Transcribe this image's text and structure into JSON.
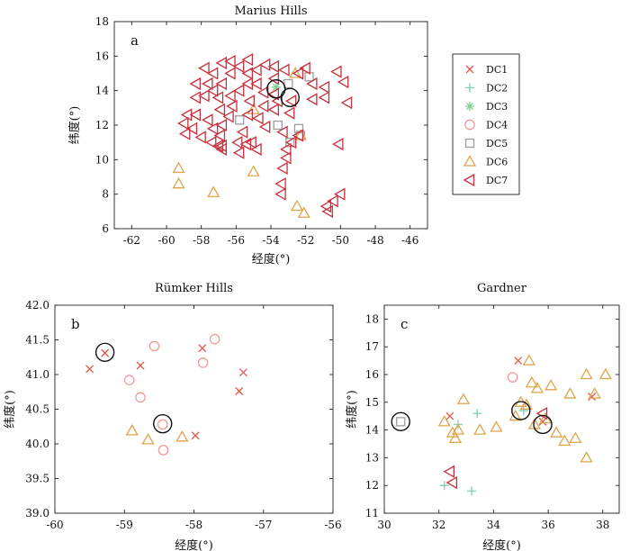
{
  "colors": {
    "DC1": "#e0584a",
    "DC2": "#7fcfb0",
    "DC3": "#7fcf95",
    "DC4": "#f19a9a",
    "DC5": "#9d9d9d",
    "DC6": "#dda54c",
    "DC7": "#c7303c",
    "circle": "#111111"
  },
  "chart_data": [
    {
      "type": "scatter",
      "panel": "a",
      "title": "Marius Hills",
      "xlabel": "经度(°)",
      "ylabel": "纬度(°)",
      "xlim": [
        -63,
        -45
      ],
      "ylim": [
        6,
        18
      ],
      "xticks": [
        -62,
        -60,
        -58,
        -56,
        -54,
        -52,
        -50,
        -48,
        -46
      ],
      "yticks": [
        6,
        8,
        10,
        12,
        14,
        16,
        18
      ],
      "legend": {
        "placement": "right",
        "entries": [
          {
            "name": "DC1",
            "marker": "x"
          },
          {
            "name": "DC2",
            "marker": "plus"
          },
          {
            "name": "DC3",
            "marker": "star"
          },
          {
            "name": "DC4",
            "marker": "circle"
          },
          {
            "name": "DC5",
            "marker": "square"
          },
          {
            "name": "DC6",
            "marker": "triangle-up"
          },
          {
            "name": "DC7",
            "marker": "triangle-left"
          }
        ]
      },
      "series": [
        {
          "name": "DC3",
          "marker": "star",
          "points": [
            [
              -53.7,
              14.2
            ]
          ]
        },
        {
          "name": "DC5",
          "marker": "square",
          "points": [
            [
              -53.0,
              14.4
            ],
            [
              -51.8,
              14.8
            ],
            [
              -52.4,
              11.8
            ],
            [
              -52.9,
              11.0
            ],
            [
              -53.6,
              12.0
            ],
            [
              -55.8,
              12.3
            ],
            [
              -52.3,
              11.4
            ]
          ]
        },
        {
          "name": "DC6",
          "marker": "triangle-up",
          "points": [
            [
              -59.3,
              9.5
            ],
            [
              -59.3,
              8.6
            ],
            [
              -57.3,
              8.1
            ],
            [
              -55.0,
              9.3
            ],
            [
              -55.0,
              12.9
            ],
            [
              -52.3,
              11.4
            ],
            [
              -52.5,
              7.3
            ],
            [
              -52.1,
              6.9
            ],
            [
              -52.6,
              15.0
            ]
          ]
        },
        {
          "name": "DC7",
          "marker": "triangle-left",
          "points": [
            [
              -59.0,
              12.1
            ],
            [
              -58.9,
              11.5
            ],
            [
              -58.8,
              12.6
            ],
            [
              -58.5,
              11.8
            ],
            [
              -58.3,
              12.6
            ],
            [
              -58.0,
              11.3
            ],
            [
              -57.6,
              12.3
            ],
            [
              -57.3,
              11.8
            ],
            [
              -57.0,
              10.8
            ],
            [
              -56.8,
              10.6
            ],
            [
              -56.9,
              11.4
            ],
            [
              -56.4,
              12.5
            ],
            [
              -56.2,
              13.1
            ],
            [
              -55.9,
              11.0
            ],
            [
              -55.8,
              10.4
            ],
            [
              -55.4,
              10.9
            ],
            [
              -55.1,
              11.0
            ],
            [
              -54.8,
              10.6
            ],
            [
              -55.3,
              12.6
            ],
            [
              -55.2,
              13.4
            ],
            [
              -54.7,
              12.4
            ],
            [
              -54.3,
              11.9
            ],
            [
              -54.4,
              13.9
            ],
            [
              -53.8,
              12.9
            ],
            [
              -53.6,
              13.4
            ],
            [
              -53.3,
              11.6
            ],
            [
              -53.1,
              10.6
            ],
            [
              -52.8,
              11.0
            ],
            [
              -52.4,
              11.4
            ],
            [
              -52.9,
              12.7
            ],
            [
              -52.8,
              13.4
            ],
            [
              -52.4,
              15.0
            ],
            [
              -52.0,
              15.3
            ],
            [
              -51.6,
              14.4
            ],
            [
              -51.6,
              13.5
            ],
            [
              -50.9,
              13.6
            ],
            [
              -50.9,
              14.2
            ],
            [
              -50.2,
              15.1
            ],
            [
              -49.8,
              14.5
            ],
            [
              -49.6,
              13.3
            ],
            [
              -50.1,
              10.9
            ],
            [
              -50.0,
              8.0
            ],
            [
              -50.4,
              7.6
            ],
            [
              -50.7,
              7.0
            ],
            [
              -50.8,
              7.3
            ],
            [
              -53.3,
              9.5
            ],
            [
              -53.1,
              10.1
            ],
            [
              -53.4,
              8.6
            ],
            [
              -53.4,
              8.0
            ],
            [
              -54.4,
              13.1
            ],
            [
              -54.8,
              14.4
            ],
            [
              -54.8,
              15.2
            ],
            [
              -55.3,
              15.0
            ],
            [
              -55.3,
              14.4
            ],
            [
              -55.8,
              14.0
            ],
            [
              -56.3,
              13.7
            ],
            [
              -56.3,
              15.0
            ],
            [
              -56.8,
              14.4
            ],
            [
              -57.3,
              14.0
            ],
            [
              -57.3,
              15.0
            ],
            [
              -57.6,
              14.4
            ],
            [
              -57.8,
              13.7
            ],
            [
              -58.3,
              13.6
            ],
            [
              -58.3,
              14.4
            ],
            [
              -57.8,
              15.3
            ],
            [
              -56.8,
              15.6
            ],
            [
              -56.3,
              15.7
            ],
            [
              -55.8,
              15.4
            ],
            [
              -55.3,
              15.8
            ],
            [
              -54.3,
              15.5
            ],
            [
              -53.8,
              15.4
            ],
            [
              -53.8,
              14.7
            ],
            [
              -53.2,
              15.2
            ],
            [
              -53.8,
              13.8
            ],
            [
              -57.4,
              11.0
            ],
            [
              -56.8,
              12.0
            ],
            [
              -56.9,
              12.9
            ],
            [
              -57.0,
              13.6
            ],
            [
              -55.6,
              11.6
            ],
            [
              -56.8,
              10.8
            ]
          ]
        }
      ],
      "highlighted": [
        [
          -53.7,
          14.1
        ],
        [
          -52.9,
          13.6
        ]
      ]
    },
    {
      "type": "scatter",
      "panel": "b",
      "title": "Rümker Hills",
      "xlabel": "经度(°)",
      "ylabel": "纬度(°)",
      "xlim": [
        -60,
        -56
      ],
      "ylim": [
        39.0,
        42.0
      ],
      "xticks": [
        -60,
        -59,
        -58,
        -57,
        -56
      ],
      "yticks": [
        "39.0",
        "39.5",
        "40.0",
        "40.5",
        "41.0",
        "41.5",
        "42.0"
      ],
      "series": [
        {
          "name": "DC1",
          "marker": "x",
          "points": [
            [
              -59.5,
              41.08
            ],
            [
              -59.28,
              41.31
            ],
            [
              -58.77,
              41.13
            ],
            [
              -57.88,
              41.38
            ],
            [
              -57.98,
              40.12
            ],
            [
              -57.35,
              40.76
            ],
            [
              -57.29,
              41.03
            ]
          ]
        },
        {
          "name": "DC4",
          "marker": "circle",
          "points": [
            [
              -58.93,
              40.92
            ],
            [
              -58.77,
              40.67
            ],
            [
              -58.57,
              41.41
            ],
            [
              -57.7,
              41.51
            ],
            [
              -57.87,
              41.17
            ],
            [
              -58.45,
              40.28
            ],
            [
              -58.44,
              39.91
            ]
          ]
        },
        {
          "name": "DC6",
          "marker": "triangle-up",
          "points": [
            [
              -58.89,
              40.19
            ],
            [
              -58.66,
              40.06
            ],
            [
              -58.17,
              40.1
            ]
          ]
        }
      ],
      "highlighted": [
        [
          -59.28,
          41.32
        ],
        [
          -58.45,
          40.29
        ]
      ]
    },
    {
      "type": "scatter",
      "panel": "c",
      "title": "Gardner",
      "xlabel": "经度(°)",
      "ylabel": "纬度(°)",
      "xlim": [
        30,
        38.6
      ],
      "ylim": [
        11,
        18.5
      ],
      "xticks": [
        30,
        32,
        34,
        36,
        38
      ],
      "yticks": [
        11,
        12,
        13,
        14,
        15,
        16,
        17,
        18
      ],
      "series": [
        {
          "name": "DC1",
          "marker": "x",
          "points": [
            [
              32.4,
              14.5
            ],
            [
              34.9,
              16.5
            ],
            [
              37.6,
              15.2
            ],
            [
              35.8,
              14.3
            ]
          ]
        },
        {
          "name": "DC2",
          "marker": "plus",
          "points": [
            [
              32.2,
              12.0
            ],
            [
              32.7,
              14.2
            ],
            [
              33.4,
              14.6
            ],
            [
              33.2,
              11.8
            ],
            [
              35.1,
              14.7
            ]
          ]
        },
        {
          "name": "DC4",
          "marker": "circle",
          "points": [
            [
              34.7,
              15.9
            ]
          ]
        },
        {
          "name": "DC5",
          "marker": "square",
          "points": [
            [
              30.6,
              14.3
            ]
          ]
        },
        {
          "name": "DC6",
          "marker": "triangle-up",
          "points": [
            [
              32.2,
              14.3
            ],
            [
              32.5,
              13.9
            ],
            [
              32.6,
              13.7
            ],
            [
              32.7,
              14.0
            ],
            [
              32.9,
              15.1
            ],
            [
              33.5,
              14.0
            ],
            [
              34.1,
              14.1
            ],
            [
              34.8,
              14.5
            ],
            [
              35.2,
              14.9
            ],
            [
              35.3,
              16.5
            ],
            [
              35.4,
              15.7
            ],
            [
              35.5,
              14.2
            ],
            [
              35.6,
              15.5
            ],
            [
              35.9,
              14.4
            ],
            [
              36.1,
              15.6
            ],
            [
              36.3,
              13.9
            ],
            [
              36.6,
              13.6
            ],
            [
              36.8,
              15.3
            ],
            [
              37.0,
              13.7
            ],
            [
              37.4,
              16.0
            ],
            [
              37.4,
              13.0
            ],
            [
              37.7,
              15.3
            ],
            [
              38.1,
              16.0
            ],
            [
              35.0,
              15.0
            ]
          ]
        },
        {
          "name": "DC7",
          "marker": "triangle-left",
          "points": [
            [
              32.4,
              12.5
            ],
            [
              32.5,
              12.1
            ],
            [
              35.8,
              14.6
            ]
          ]
        }
      ],
      "highlighted": [
        [
          30.6,
          14.3
        ],
        [
          35.0,
          14.7
        ],
        [
          35.8,
          14.2
        ]
      ]
    }
  ]
}
